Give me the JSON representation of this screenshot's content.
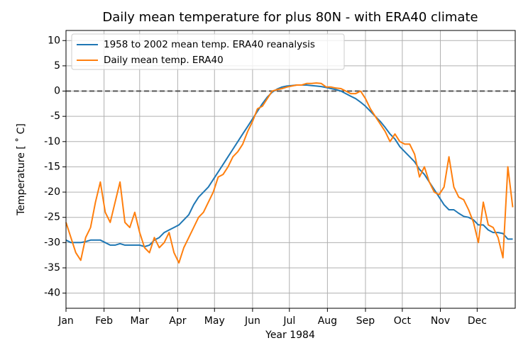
{
  "chart_data": {
    "type": "line",
    "title": "Daily mean temperature for plus 80N - with ERA40 climate",
    "xlabel": "Year 1984",
    "ylabel": "Temperature [$^\\circ$C]",
    "x": [
      0,
      4,
      8,
      12,
      16,
      20,
      24,
      28,
      32,
      36,
      40,
      44,
      48,
      52,
      56,
      60,
      64,
      68,
      72,
      76,
      80,
      84,
      88,
      92,
      96,
      100,
      104,
      108,
      112,
      116,
      120,
      124,
      128,
      132,
      136,
      140,
      144,
      148,
      152,
      156,
      160,
      164,
      168,
      172,
      176,
      180,
      184,
      188,
      192,
      196,
      200,
      204,
      208,
      212,
      216,
      220,
      224,
      228,
      232,
      236,
      240,
      244,
      248,
      252,
      256,
      260,
      264,
      268,
      272,
      276,
      280,
      284,
      288,
      292,
      296,
      300,
      304,
      308,
      312,
      316,
      320,
      324,
      328,
      332,
      336,
      340,
      344,
      348,
      352,
      356,
      360,
      364
    ],
    "series": [
      {
        "name": "1958 to 2002 mean temp. ERA40 reanalysis",
        "color": "#1f77b4",
        "values": [
          -29.5,
          -30,
          -30,
          -30,
          -29.8,
          -29.5,
          -29.5,
          -29.5,
          -30,
          -30.5,
          -30.5,
          -30.2,
          -30.5,
          -30.5,
          -30.5,
          -30.5,
          -30.8,
          -30.5,
          -29.5,
          -29,
          -28,
          -27.5,
          -27,
          -26.5,
          -25.5,
          -24.5,
          -22.5,
          -21,
          -20,
          -19,
          -17.5,
          -16,
          -14.5,
          -13,
          -11.5,
          -10,
          -8.5,
          -7,
          -5.5,
          -4,
          -2.5,
          -1.2,
          -0.2,
          0.4,
          0.8,
          1,
          1.1,
          1.2,
          1.2,
          1.2,
          1.1,
          1,
          0.9,
          0.7,
          0.5,
          0.3,
          0,
          -0.5,
          -1,
          -1.5,
          -2.2,
          -3,
          -4,
          -5,
          -6,
          -7.2,
          -8.5,
          -9.5,
          -11,
          -12,
          -13,
          -14,
          -15.5,
          -16.5,
          -18,
          -19.5,
          -21,
          -22.5,
          -23.5,
          -23.5,
          -24.2,
          -24.8,
          -25,
          -25.5,
          -26.5,
          -26.5,
          -27.5,
          -28,
          -28,
          -28.2,
          -29.3,
          -29.3
        ]
      },
      {
        "name": "Daily mean temp. ERA40",
        "color": "#ff7f0e",
        "values": [
          -26,
          -29,
          -32,
          -33.5,
          -29,
          -27,
          -22,
          -18,
          -24,
          -26,
          -22,
          -18,
          -26,
          -27,
          -24,
          -28,
          -31,
          -32,
          -29,
          -31,
          -30,
          -28,
          -32,
          -34,
          -31,
          -29,
          -27,
          -25,
          -24,
          -22,
          -20,
          -17,
          -16.5,
          -15,
          -13,
          -12,
          -10.5,
          -8,
          -6,
          -3.5,
          -3,
          -1.5,
          0,
          0.3,
          0.5,
          0.8,
          1,
          1.2,
          1.2,
          1.5,
          1.5,
          1.6,
          1.5,
          0.8,
          0.8,
          0.6,
          0.5,
          0,
          -0.5,
          -0.5,
          0,
          -1.5,
          -3.5,
          -5,
          -6.5,
          -8,
          -10,
          -8.5,
          -10,
          -10.5,
          -10.5,
          -12.5,
          -17,
          -15,
          -18,
          -20,
          -20.5,
          -19,
          -13,
          -19,
          -21,
          -21.5,
          -23.5,
          -26,
          -30,
          -22,
          -26.5,
          -27,
          -29,
          -33,
          -15,
          -23
        ]
      }
    ],
    "hline": 0,
    "xlim": [
      0,
      366
    ],
    "xticks": [
      {
        "value": 0,
        "label": "Jan"
      },
      {
        "value": 31,
        "label": "Feb"
      },
      {
        "value": 60,
        "label": "Mar"
      },
      {
        "value": 91,
        "label": "Apr"
      },
      {
        "value": 121,
        "label": "May"
      },
      {
        "value": 152,
        "label": "Jun"
      },
      {
        "value": 182,
        "label": "Jul"
      },
      {
        "value": 213,
        "label": "Aug"
      },
      {
        "value": 244,
        "label": "Sep"
      },
      {
        "value": 274,
        "label": "Oct"
      },
      {
        "value": 305,
        "label": "Nov"
      },
      {
        "value": 335,
        "label": "Dec"
      }
    ],
    "ylim": [
      -43,
      12
    ],
    "yticks": [
      10,
      5,
      0,
      -5,
      -10,
      -15,
      -20,
      -25,
      -30,
      -35,
      -40
    ],
    "grid": true,
    "legend": "upper left"
  }
}
